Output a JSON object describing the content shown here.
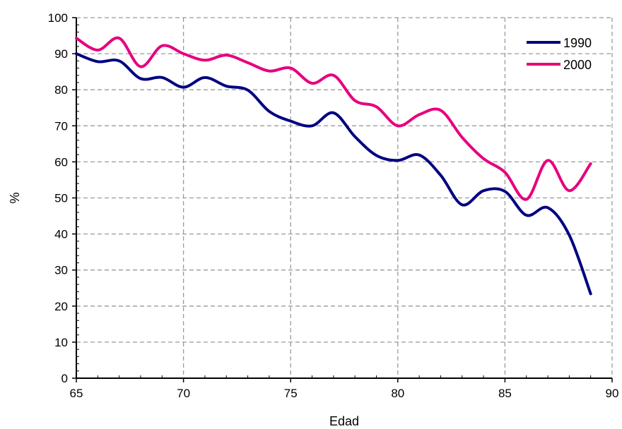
{
  "chart_data": {
    "type": "line",
    "title": "",
    "xlabel": "Edad",
    "ylabel": "%",
    "xlim": [
      65,
      90
    ],
    "ylim": [
      0,
      100
    ],
    "x_ticks": [
      65,
      70,
      75,
      80,
      85,
      90
    ],
    "y_ticks": [
      0,
      10,
      20,
      30,
      40,
      50,
      60,
      70,
      80,
      90,
      100
    ],
    "grid": true,
    "legend_position": "top-right",
    "x": [
      65,
      66,
      67,
      68,
      69,
      70,
      71,
      72,
      73,
      74,
      75,
      76,
      77,
      78,
      79,
      80,
      81,
      82,
      83,
      84,
      85,
      86,
      87,
      88,
      89
    ],
    "series": [
      {
        "name": "1990",
        "color": "#000080",
        "values": [
          90.0,
          87.8,
          88.0,
          83.1,
          83.4,
          80.7,
          83.4,
          81.0,
          79.9,
          74.0,
          71.3,
          70.0,
          73.6,
          67.0,
          61.8,
          60.4,
          61.9,
          56.3,
          48.1,
          52.0,
          51.8,
          45.2,
          47.3,
          39.7,
          23.4
        ]
      },
      {
        "name": "2000",
        "color": "#e6007e",
        "values": [
          94.3,
          91.0,
          94.3,
          86.4,
          92.2,
          90.0,
          88.2,
          89.6,
          87.5,
          85.2,
          86.0,
          81.8,
          84.0,
          77.0,
          75.3,
          70.0,
          73.1,
          74.3,
          66.8,
          60.9,
          57.1,
          49.6,
          60.4,
          52.0,
          59.5
        ]
      }
    ]
  }
}
